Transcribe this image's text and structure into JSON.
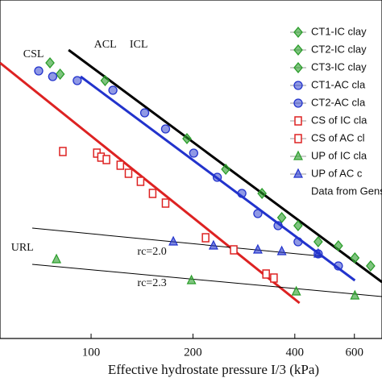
{
  "chart_data": {
    "type": "scatter",
    "x_label": "Effective hydrostate pressure I/3 (kPa)",
    "xlim": [
      53.8,
      724
    ],
    "ylim": [
      0,
      42
    ],
    "x_log": true,
    "xticks": [
      100,
      200,
      400,
      600
    ],
    "series": [
      {
        "name": "CT1-IC clay",
        "color": "#2a9d2a",
        "marker": "diamond",
        "x": [
          75.6,
          81,
          110,
          192,
          250,
          320,
          366,
          409,
          469,
          538,
          602,
          670
        ],
        "values": [
          34.2,
          32.8,
          32.0,
          24.8,
          21.0,
          18.0,
          15.0,
          14.0,
          12.0,
          11.5,
          10.0,
          9.0
        ]
      },
      {
        "name": "CT2-IC clay",
        "color": "#2a9d2a",
        "marker": "diamond",
        "x": [],
        "values": []
      },
      {
        "name": "CT3-IC clay",
        "color": "#2a9d2a",
        "marker": "diamond",
        "x": [],
        "values": []
      },
      {
        "name": "CT1-AC cla",
        "color": "#2233cc",
        "marker": "circle",
        "x": [
          70,
          77,
          91,
          116,
          144,
          166,
          201,
          236,
          279,
          311,
          357,
          409,
          469,
          538
        ],
        "values": [
          33.2,
          32.5,
          32,
          30.8,
          28,
          26,
          23,
          20,
          18,
          15.5,
          14,
          12,
          10.5,
          9
        ]
      },
      {
        "name": "CT2-AC cla",
        "color": "#2233cc",
        "marker": "circle",
        "x": [],
        "values": []
      },
      {
        "name": "CS of IC cla",
        "color": "#dd2222",
        "marker": "square",
        "x": [
          82.5,
          104,
          107,
          111,
          122,
          129,
          140,
          152,
          166,
          218,
          264,
          329,
          347
        ],
        "values": [
          23.2,
          23,
          22.5,
          22.2,
          21.5,
          20.5,
          19.5,
          18,
          16.8,
          12.5,
          11,
          8,
          7.5
        ]
      },
      {
        "name": "CS of AC cl",
        "color": "#dd2222",
        "marker": "square",
        "x": [],
        "values": []
      },
      {
        "name": "UP of IC cla",
        "color": "#2a9d2a",
        "marker": "triangle",
        "x": [
          79,
          198,
          404,
          602
        ],
        "values": [
          9.8,
          7.2,
          5.8,
          5.3
        ]
      },
      {
        "name": "UP of AC c",
        "color": "#2233cc",
        "marker": "triangle",
        "x": [
          175,
          230,
          311,
          366,
          469
        ],
        "values": [
          12,
          11.5,
          11,
          10.8,
          10.5
        ]
      },
      {
        "name": "Data from Gens",
        "color": "#888888",
        "marker": "none",
        "x": [],
        "values": []
      }
    ],
    "lines": [
      {
        "name": "ICL",
        "color": "#000000",
        "width": 3,
        "x": [
          85.8,
          724
        ],
        "values": [
          35.8,
          7.0
        ]
      },
      {
        "name": "ACL",
        "color": "#2233cc",
        "width": 3,
        "x": [
          93.1,
          602
        ],
        "values": [
          32.5,
          7.2
        ]
      },
      {
        "name": "CSL",
        "color": "#dd2222",
        "width": 3,
        "x": [
          53.8,
          413
        ],
        "values": [
          34.2,
          4.4
        ]
      },
      {
        "name": "URL",
        "color": "#000000",
        "width": 1,
        "x": [
          67,
          482
        ],
        "values": [
          13.7,
          10.2
        ]
      },
      {
        "name": "URL",
        "color": "#000000",
        "width": 1,
        "x": [
          67,
          724
        ],
        "values": [
          9.2,
          5.2
        ]
      }
    ],
    "annotations": [
      {
        "text": "ICL",
        "x": 130,
        "y": 36.4
      },
      {
        "text": "ACL",
        "x": 102,
        "y": 36.4
      },
      {
        "text": "CSL",
        "x": 63,
        "y": 35.2
      },
      {
        "text": "URL",
        "x": 58,
        "y": 11.2
      },
      {
        "text": "rc=2.0",
        "x": 137,
        "y": 10.7
      },
      {
        "text": "rc=2.3",
        "x": 137,
        "y": 6.8
      }
    ]
  }
}
